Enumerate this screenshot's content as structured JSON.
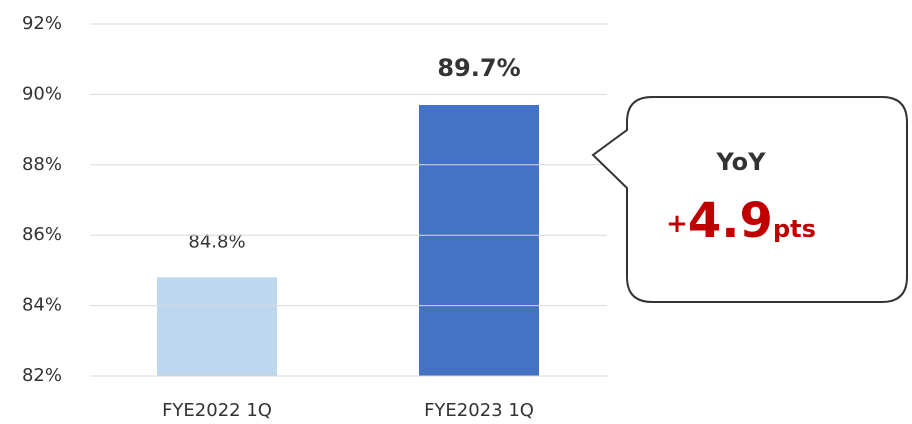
{
  "chart_data": {
    "type": "bar",
    "categories": [
      "FYE2022 1Q",
      "FYE2023 1Q"
    ],
    "values": [
      84.8,
      89.7
    ],
    "value_labels": [
      "84.8%",
      "89.7%"
    ],
    "value_label_bold": [
      false,
      true
    ],
    "colors": [
      "#bdd7ee",
      "#4472c4"
    ],
    "ylim": [
      82,
      92
    ],
    "yticks": [
      {
        "value": 82,
        "label": "82%"
      },
      {
        "value": 84,
        "label": "84%"
      },
      {
        "value": 86,
        "label": "86%"
      },
      {
        "value": 88,
        "label": "88%"
      },
      {
        "value": 90,
        "label": "90%"
      },
      {
        "value": 92,
        "label": "92%"
      }
    ],
    "grid": true,
    "annotation": {
      "title": "YoY",
      "sign": "+",
      "value": 4.9,
      "unit": "pts",
      "color": "#c00000"
    }
  }
}
